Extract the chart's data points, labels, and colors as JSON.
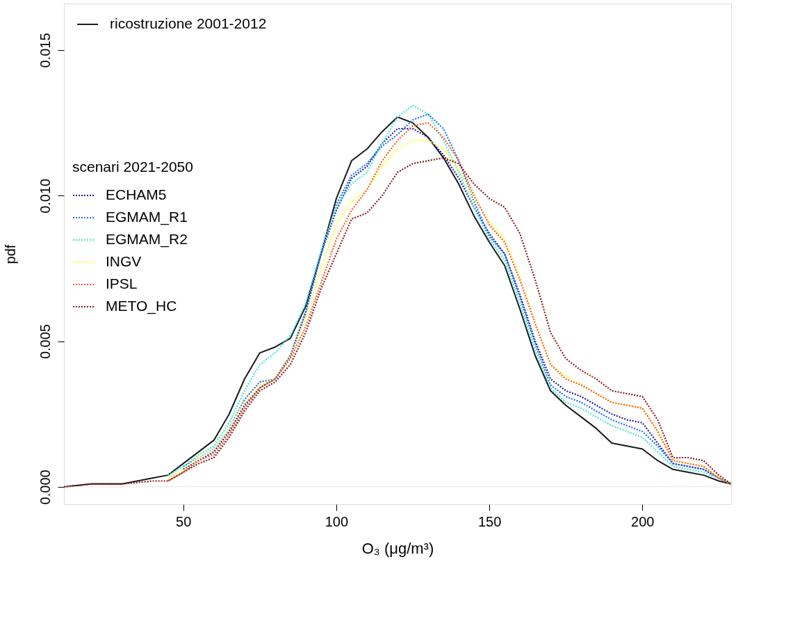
{
  "chart_data": {
    "type": "line",
    "xlabel": "O₃ (μg/m³)",
    "ylabel": "pdf",
    "legend_title": "scenari 2021-2050",
    "x": [
      11,
      20,
      30,
      40,
      45,
      50,
      55,
      60,
      65,
      70,
      75,
      80,
      85,
      90,
      95,
      100,
      105,
      110,
      115,
      120,
      125,
      130,
      135,
      140,
      145,
      150,
      155,
      160,
      165,
      170,
      175,
      180,
      185,
      190,
      195,
      200,
      205,
      210,
      215,
      220,
      225,
      229
    ],
    "xlim": [
      11,
      229
    ],
    "ylim": [
      -0.0006,
      0.0166
    ],
    "xticks": [
      50,
      100,
      150,
      200
    ],
    "yticks": [
      {
        "value": 0,
        "label": "0.000"
      },
      {
        "value": 0.005,
        "label": "0.005"
      },
      {
        "value": 0.01,
        "label": "0.010"
      },
      {
        "value": 0.015,
        "label": "0.015"
      }
    ],
    "grid": false,
    "legend": "top left",
    "marker": "none",
    "ref_lines": [
      {
        "axis": "y",
        "value": 0,
        "label": null,
        "color": "#e6e6e6"
      }
    ],
    "series": [
      {
        "name": "ricostruzione 2001-2012",
        "color": "#1a1a1a",
        "line_style": "solid",
        "values": [
          0,
          0.0001,
          0.0001,
          0.0003,
          0.0004,
          0.0008,
          0.0012,
          0.0016,
          0.0025,
          0.0037,
          0.0046,
          0.0048,
          0.0051,
          0.0062,
          0.008,
          0.0099,
          0.0112,
          0.0116,
          0.0122,
          0.0127,
          0.0125,
          0.012,
          0.0113,
          0.0104,
          0.0093,
          0.0084,
          0.0076,
          0.0061,
          0.0045,
          0.0033,
          0.0028,
          0.0024,
          0.002,
          0.0015,
          0.0014,
          0.0013,
          0.0009,
          0.0006,
          0.0005,
          0.0004,
          0.0002,
          0.0001
        ]
      },
      {
        "name": "ECHAM5",
        "color": "#1c1c9c",
        "line_style": "dotted",
        "values": [
          null,
          null,
          null,
          null,
          null,
          0.0006,
          0.0009,
          0.0012,
          0.0019,
          0.0028,
          0.0034,
          0.0037,
          0.0045,
          0.006,
          0.008,
          0.0095,
          0.0106,
          0.011,
          0.0118,
          0.0123,
          0.0123,
          0.012,
          0.0114,
          0.0106,
          0.0096,
          0.0087,
          0.008,
          0.0066,
          0.005,
          0.0037,
          0.0033,
          0.0031,
          0.0028,
          0.0025,
          0.0023,
          0.0022,
          0.0015,
          0.0008,
          0.0007,
          0.0006,
          0.0003,
          0.0001
        ]
      },
      {
        "name": "EGMAM_R1",
        "color": "#1e6bff",
        "line_style": "dotted",
        "values": [
          null,
          null,
          null,
          null,
          null,
          0.0007,
          0.001,
          0.0013,
          0.002,
          0.003,
          0.0036,
          0.0037,
          0.0045,
          0.006,
          0.008,
          0.0097,
          0.0107,
          0.0111,
          0.0117,
          0.0121,
          0.0126,
          0.0128,
          0.0123,
          0.0112,
          0.0098,
          0.0086,
          0.008,
          0.0065,
          0.0049,
          0.0035,
          0.0031,
          0.0029,
          0.0026,
          0.0023,
          0.0021,
          0.0019,
          0.0014,
          0.0008,
          0.0007,
          0.0006,
          0.0003,
          0.0001
        ]
      },
      {
        "name": "EGMAM_R2",
        "color": "#40e8d0",
        "line_style": "dotted",
        "values": [
          null,
          null,
          null,
          null,
          0.0004,
          0.0007,
          0.0011,
          0.0014,
          0.0022,
          0.0033,
          0.0042,
          0.0046,
          0.0052,
          0.0063,
          0.0081,
          0.0096,
          0.0104,
          0.0108,
          0.0118,
          0.0127,
          0.0131,
          0.0128,
          0.0119,
          0.0108,
          0.0096,
          0.0085,
          0.0078,
          0.0063,
          0.0047,
          0.0034,
          0.0029,
          0.0027,
          0.0024,
          0.0021,
          0.0019,
          0.0017,
          0.0012,
          0.0007,
          0.0006,
          0.0005,
          0.0003,
          0.0001
        ]
      },
      {
        "name": "INGV",
        "color": "#ffff33",
        "line_style": "dotted",
        "values": [
          null,
          null,
          null,
          null,
          0.0003,
          0.0006,
          0.001,
          0.0013,
          0.002,
          0.0029,
          0.0035,
          0.0037,
          0.0045,
          0.0058,
          0.0075,
          0.009,
          0.0098,
          0.0102,
          0.011,
          0.0116,
          0.0119,
          0.0119,
          0.0116,
          0.0109,
          0.0099,
          0.0091,
          0.0085,
          0.0072,
          0.0056,
          0.0042,
          0.0038,
          0.0035,
          0.0032,
          0.0029,
          0.0028,
          0.0027,
          0.0019,
          0.0009,
          0.0008,
          0.0007,
          0.0003,
          0.0001
        ]
      },
      {
        "name": "IPSL",
        "color": "#ff5a1f",
        "line_style": "dotted",
        "values": [
          null,
          null,
          null,
          null,
          0.0002,
          0.0005,
          0.0009,
          0.0011,
          0.0018,
          0.0027,
          0.0034,
          0.0037,
          0.0044,
          0.0055,
          0.007,
          0.0085,
          0.0095,
          0.0102,
          0.0112,
          0.0119,
          0.0124,
          0.0125,
          0.012,
          0.0112,
          0.01,
          0.009,
          0.0084,
          0.0071,
          0.0056,
          0.0042,
          0.0037,
          0.0035,
          0.0032,
          0.0029,
          0.0028,
          0.0027,
          0.0019,
          0.0009,
          0.0008,
          0.0007,
          0.0003,
          0.0001
        ]
      },
      {
        "name": "METO_HC",
        "color": "#8b1a1a",
        "line_style": "dotted",
        "values": [
          0,
          0.0001,
          0.0001,
          0.0002,
          0.0002,
          0.0005,
          0.0008,
          0.001,
          0.0017,
          0.0026,
          0.0033,
          0.0036,
          0.0042,
          0.0053,
          0.0068,
          0.008,
          0.0092,
          0.0094,
          0.01,
          0.0108,
          0.0111,
          0.0112,
          0.0113,
          0.0111,
          0.0104,
          0.0099,
          0.0096,
          0.0087,
          0.0071,
          0.0053,
          0.0044,
          0.004,
          0.0037,
          0.0033,
          0.0032,
          0.0031,
          0.0023,
          0.001,
          0.001,
          0.0009,
          0.0004,
          0.0001
        ]
      }
    ]
  }
}
